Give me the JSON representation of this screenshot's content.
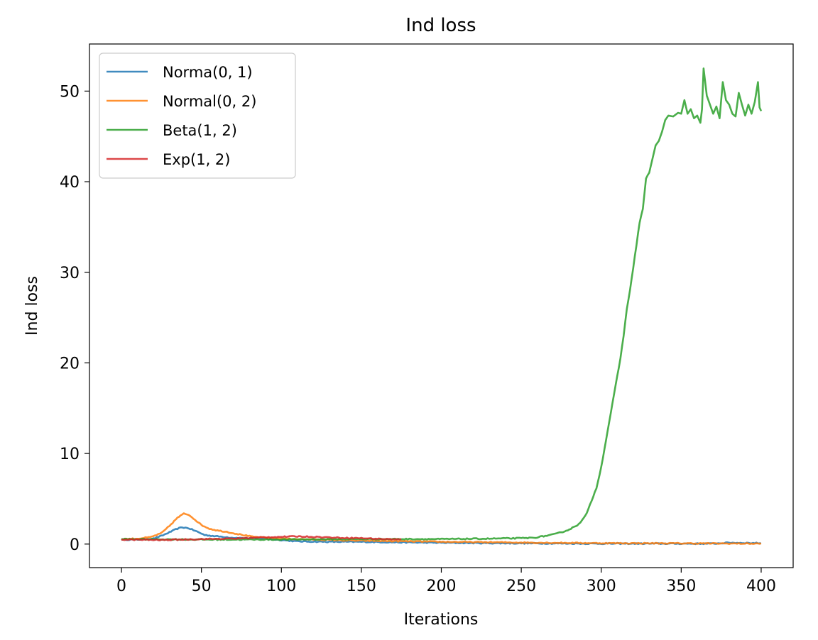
{
  "chart_data": {
    "type": "line",
    "title": "Ind loss",
    "xlabel": "Iterations",
    "ylabel": "Ind loss",
    "xlim": [
      -20,
      420
    ],
    "ylim": [
      -2.6,
      55.2
    ],
    "x_ticks": [
      0,
      50,
      100,
      150,
      200,
      250,
      300,
      350,
      400
    ],
    "y_ticks": [
      0,
      10,
      20,
      30,
      40,
      50
    ],
    "grid": false,
    "legend_position": "upper-left",
    "series": [
      {
        "name": "Norma(0, 1)",
        "color": "#1f77b4",
        "x_end": 400,
        "points": [
          [
            0,
            0.5
          ],
          [
            10,
            0.5
          ],
          [
            20,
            0.6
          ],
          [
            25,
            0.9
          ],
          [
            30,
            1.3
          ],
          [
            35,
            1.7
          ],
          [
            38,
            1.85
          ],
          [
            42,
            1.75
          ],
          [
            47,
            1.4
          ],
          [
            52,
            1.0
          ],
          [
            60,
            0.85
          ],
          [
            70,
            0.7
          ],
          [
            90,
            0.6
          ],
          [
            100,
            0.45
          ],
          [
            110,
            0.3
          ],
          [
            130,
            0.25
          ],
          [
            150,
            0.25
          ],
          [
            170,
            0.2
          ],
          [
            200,
            0.15
          ],
          [
            230,
            0.1
          ],
          [
            260,
            0.08
          ],
          [
            300,
            0.05
          ],
          [
            350,
            0.05
          ],
          [
            370,
            0.05
          ],
          [
            380,
            0.15
          ],
          [
            400,
            0.1
          ]
        ]
      },
      {
        "name": "Normal(0, 2)",
        "color": "#ff7f0e",
        "x_end": 400,
        "points": [
          [
            0,
            0.55
          ],
          [
            10,
            0.6
          ],
          [
            18,
            0.75
          ],
          [
            25,
            1.2
          ],
          [
            30,
            2.0
          ],
          [
            35,
            2.9
          ],
          [
            39,
            3.35
          ],
          [
            42,
            3.25
          ],
          [
            46,
            2.7
          ],
          [
            50,
            2.1
          ],
          [
            55,
            1.7
          ],
          [
            60,
            1.5
          ],
          [
            66,
            1.35
          ],
          [
            70,
            1.2
          ],
          [
            76,
            1.0
          ],
          [
            82,
            0.8
          ],
          [
            90,
            0.7
          ],
          [
            100,
            0.6
          ],
          [
            120,
            0.5
          ],
          [
            140,
            0.4
          ],
          [
            160,
            0.35
          ],
          [
            180,
            0.3
          ],
          [
            200,
            0.25
          ],
          [
            230,
            0.2
          ],
          [
            260,
            0.15
          ],
          [
            300,
            0.1
          ],
          [
            350,
            0.08
          ],
          [
            400,
            0.05
          ]
        ]
      },
      {
        "name": "Beta(1, 2)",
        "color": "#2ca02c",
        "x_end": 400,
        "points": [
          [
            0,
            0.55
          ],
          [
            50,
            0.5
          ],
          [
            100,
            0.5
          ],
          [
            150,
            0.55
          ],
          [
            200,
            0.55
          ],
          [
            230,
            0.6
          ],
          [
            250,
            0.65
          ],
          [
            258,
            0.7
          ],
          [
            265,
            0.9
          ],
          [
            270,
            1.05
          ],
          [
            275,
            1.3
          ],
          [
            280,
            1.6
          ],
          [
            285,
            2.1
          ],
          [
            288,
            2.6
          ],
          [
            291,
            3.4
          ],
          [
            294,
            4.8
          ],
          [
            297,
            6.2
          ],
          [
            300,
            8.5
          ],
          [
            303,
            11.5
          ],
          [
            306,
            14.5
          ],
          [
            309,
            17.5
          ],
          [
            312,
            20.5
          ],
          [
            314,
            23.0
          ],
          [
            316,
            26.0
          ],
          [
            318,
            28.0
          ],
          [
            320,
            30.5
          ],
          [
            322,
            33.0
          ],
          [
            324,
            35.5
          ],
          [
            326,
            37.0
          ],
          [
            328,
            40.3
          ],
          [
            330,
            41.0
          ],
          [
            332,
            42.5
          ],
          [
            334,
            44.0
          ],
          [
            336,
            44.5
          ],
          [
            338,
            45.5
          ],
          [
            340,
            46.8
          ],
          [
            342,
            47.3
          ],
          [
            345,
            47.2
          ],
          [
            348,
            47.6
          ],
          [
            350,
            47.5
          ],
          [
            352,
            49.0
          ],
          [
            354,
            47.5
          ],
          [
            356,
            48.0
          ],
          [
            358,
            47.0
          ],
          [
            360,
            47.3
          ],
          [
            362,
            46.5
          ],
          [
            363,
            48.0
          ],
          [
            364,
            52.5
          ],
          [
            366,
            49.5
          ],
          [
            368,
            48.5
          ],
          [
            370,
            47.5
          ],
          [
            372,
            48.3
          ],
          [
            374,
            47.0
          ],
          [
            376,
            51.0
          ],
          [
            378,
            49.0
          ],
          [
            380,
            48.5
          ],
          [
            382,
            47.5
          ],
          [
            384,
            47.2
          ],
          [
            386,
            49.8
          ],
          [
            388,
            48.5
          ],
          [
            390,
            47.3
          ],
          [
            392,
            48.5
          ],
          [
            394,
            47.5
          ],
          [
            396,
            48.8
          ],
          [
            398,
            51.0
          ],
          [
            399,
            48.2
          ],
          [
            400,
            47.8
          ]
        ]
      },
      {
        "name": "Exp(1, 2)",
        "color": "#d62728",
        "x_end": 175,
        "points": [
          [
            0,
            0.5
          ],
          [
            25,
            0.45
          ],
          [
            50,
            0.55
          ],
          [
            70,
            0.6
          ],
          [
            90,
            0.75
          ],
          [
            100,
            0.8
          ],
          [
            110,
            0.85
          ],
          [
            120,
            0.8
          ],
          [
            135,
            0.7
          ],
          [
            150,
            0.65
          ],
          [
            165,
            0.55
          ],
          [
            175,
            0.5
          ]
        ]
      }
    ]
  }
}
